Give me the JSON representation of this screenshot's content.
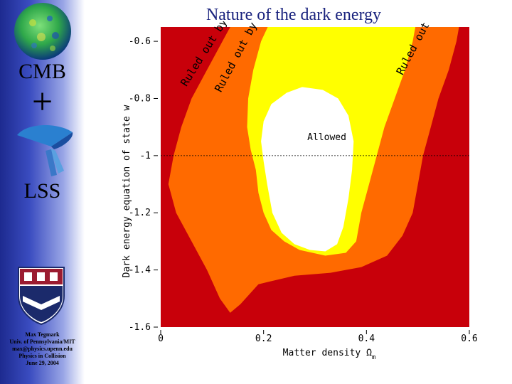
{
  "slide": {
    "title": "Nature of the dark energy",
    "cmb_label": "CMB",
    "plus_symbol": "+",
    "lss_label": "LSS",
    "credits": [
      "Max Tegmark",
      "Univ. of Pennsylvania/MIT",
      "max@physics.upenn.edu",
      "Physics in Collision",
      "June 29, 2004"
    ],
    "icons": [
      "cmb-sky-map-icon",
      "lss-galaxy-wedge-icon",
      "penn-shield-logo-icon"
    ]
  },
  "chart_data": {
    "type": "contour",
    "xlabel": "Matter density Ω",
    "xlabel_sub": "m",
    "ylabel": "Dark energy equation of state w",
    "xlim": [
      0,
      0.6
    ],
    "ylim": [
      -1.6,
      -0.55
    ],
    "xticks": [
      0,
      0.2,
      0.4,
      0.6
    ],
    "xtick_labels": [
      "0",
      "0.2",
      "0.4",
      "0.6"
    ],
    "yticks": [
      -0.6,
      -0.8,
      -1.0,
      -1.2,
      -1.4,
      -1.6
    ],
    "ytick_labels": [
      "-0.6",
      "-0.8",
      "-1",
      "-1.2",
      "-1.4",
      "-1.6"
    ],
    "reference_line_y": -1.0,
    "colors": {
      "wmap": "#c8000a",
      "sdss": "#ff6a00",
      "sn": "#ffff00",
      "allowed": "#ffffff"
    },
    "regions": [
      {
        "label": "Ruled out by WMAP",
        "color": "#c8000a",
        "boundary": [
          [
            0,
            -0.55
          ],
          [
            0.6,
            -0.55
          ],
          [
            0.6,
            -1.6
          ],
          [
            0,
            -1.6
          ]
        ],
        "label_at": [
          0.05,
          -0.76
        ],
        "label_angle": -58
      },
      {
        "label": "Ruled out by SDSS",
        "color": "#ff6a00",
        "boundary": [
          [
            0.135,
            -0.55
          ],
          [
            0.12,
            -0.6
          ],
          [
            0.09,
            -0.7
          ],
          [
            0.06,
            -0.8
          ],
          [
            0.04,
            -0.9
          ],
          [
            0.025,
            -1.0
          ],
          [
            0.015,
            -1.1
          ],
          [
            0.03,
            -1.2
          ],
          [
            0.06,
            -1.3
          ],
          [
            0.09,
            -1.4
          ],
          [
            0.115,
            -1.5
          ],
          [
            0.135,
            -1.55
          ],
          [
            0.155,
            -1.52
          ],
          [
            0.19,
            -1.45
          ],
          [
            0.26,
            -1.42
          ],
          [
            0.33,
            -1.41
          ],
          [
            0.39,
            -1.39
          ],
          [
            0.44,
            -1.35
          ],
          [
            0.47,
            -1.28
          ],
          [
            0.49,
            -1.2
          ],
          [
            0.5,
            -1.1
          ],
          [
            0.51,
            -1.0
          ],
          [
            0.525,
            -0.9
          ],
          [
            0.54,
            -0.8
          ],
          [
            0.56,
            -0.7
          ],
          [
            0.575,
            -0.6
          ],
          [
            0.58,
            -0.55
          ]
        ],
        "label_at": [
          0.117,
          -0.78
        ],
        "label_angle": -62
      },
      {
        "label": "Ruled out by SN Ia",
        "color": "#ffff00",
        "boundary": [
          [
            0.208,
            -0.55
          ],
          [
            0.195,
            -0.6
          ],
          [
            0.18,
            -0.7
          ],
          [
            0.17,
            -0.8
          ],
          [
            0.168,
            -0.9
          ],
          [
            0.175,
            -0.98
          ],
          [
            0.185,
            -1.05
          ],
          [
            0.19,
            -1.13
          ],
          [
            0.2,
            -1.2
          ],
          [
            0.215,
            -1.26
          ],
          [
            0.24,
            -1.3
          ],
          [
            0.27,
            -1.33
          ],
          [
            0.32,
            -1.35
          ],
          [
            0.36,
            -1.34
          ],
          [
            0.38,
            -1.3
          ],
          [
            0.39,
            -1.2
          ],
          [
            0.405,
            -1.1
          ],
          [
            0.42,
            -1.0
          ],
          [
            0.435,
            -0.9
          ],
          [
            0.455,
            -0.8
          ],
          [
            0.475,
            -0.7
          ],
          [
            0.49,
            -0.6
          ],
          [
            0.495,
            -0.55
          ]
        ],
        "label_at": [
          0.47,
          -0.72
        ],
        "label_angle": -62
      },
      {
        "label": "Allowed",
        "color": "#ffffff",
        "boundary": [
          [
            0.245,
            -0.78
          ],
          [
            0.275,
            -0.76
          ],
          [
            0.315,
            -0.77
          ],
          [
            0.345,
            -0.8
          ],
          [
            0.365,
            -0.86
          ],
          [
            0.375,
            -0.95
          ],
          [
            0.372,
            -1.05
          ],
          [
            0.365,
            -1.15
          ],
          [
            0.355,
            -1.25
          ],
          [
            0.343,
            -1.31
          ],
          [
            0.32,
            -1.335
          ],
          [
            0.29,
            -1.33
          ],
          [
            0.26,
            -1.31
          ],
          [
            0.235,
            -1.27
          ],
          [
            0.217,
            -1.2
          ],
          [
            0.207,
            -1.1
          ],
          [
            0.2,
            -1.02
          ],
          [
            0.195,
            -0.95
          ],
          [
            0.2,
            -0.88
          ],
          [
            0.215,
            -0.82
          ]
        ],
        "label_at": [
          0.285,
          -0.945
        ],
        "label_angle": 0
      }
    ]
  }
}
